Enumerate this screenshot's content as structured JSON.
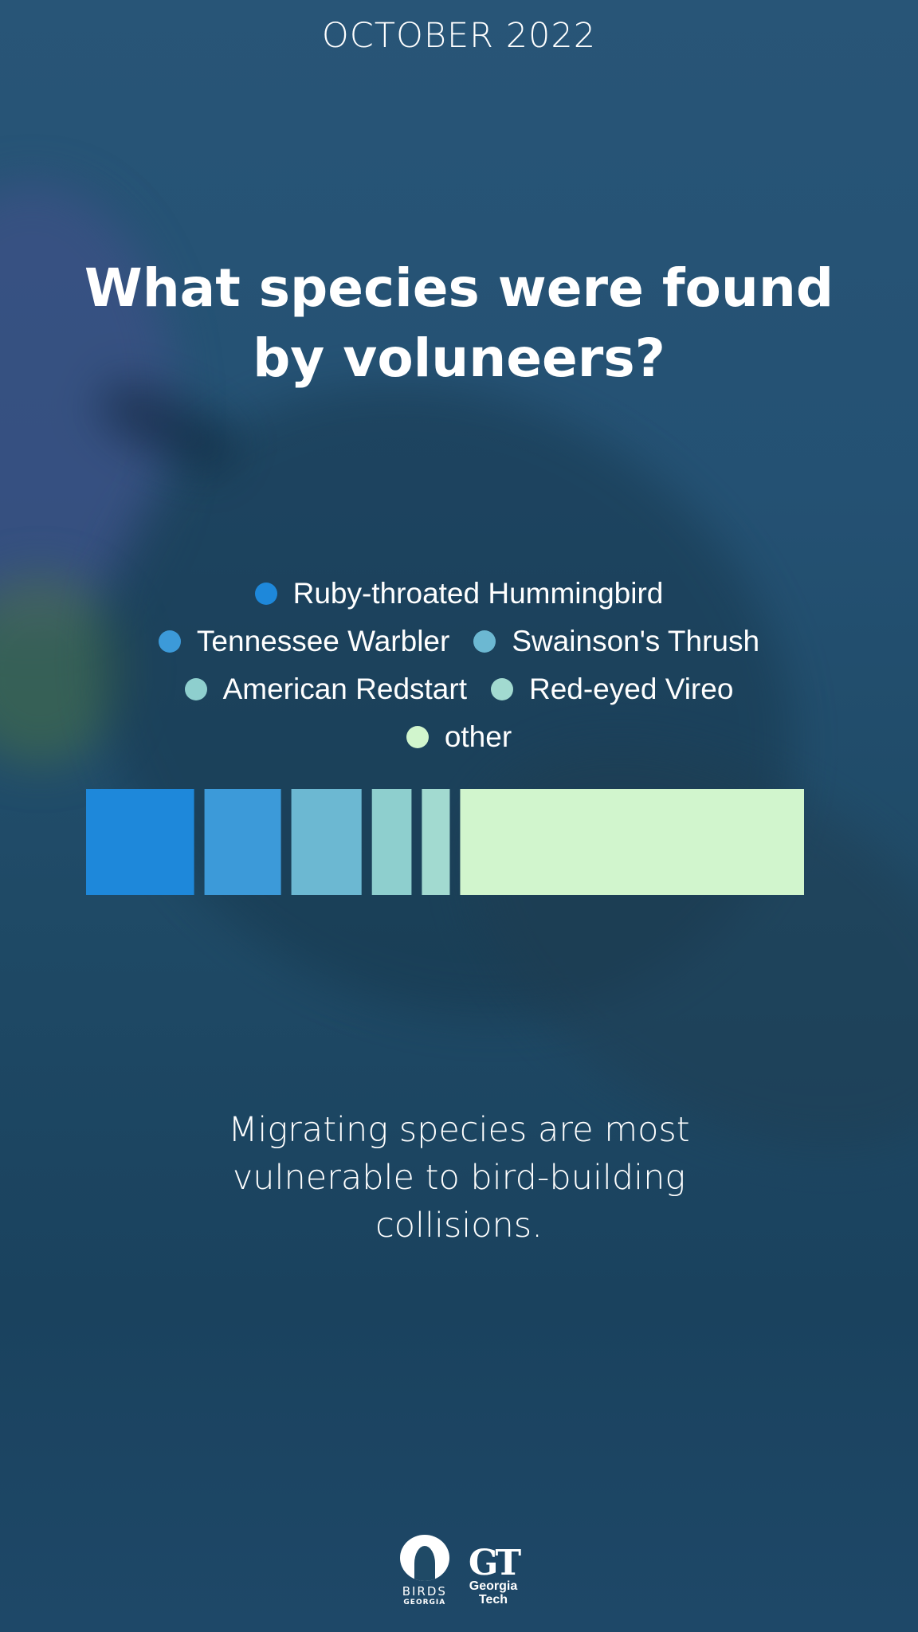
{
  "header": {
    "month": "OCTOBER 2022"
  },
  "title": {
    "line1": "What species were found",
    "line2": "by voluneers?"
  },
  "chart_data": {
    "type": "bar",
    "orientation": "horizontal-stacked",
    "categories": [
      "Ruby-throated Hummingbird",
      "Tennessee Warbler",
      "Swainson's Thrush",
      "American Redstart",
      "Red-eyed Vireo",
      "other"
    ],
    "values": [
      12,
      8.5,
      7.8,
      4.4,
      3.1,
      38.2
    ],
    "units": "percent of total",
    "colors": [
      "#1e88da",
      "#3c9ad9",
      "#6cb8d2",
      "#8ecfce",
      "#a2dad0",
      "#d1f5cd"
    ],
    "legend": {
      "position": "top",
      "rows": [
        [
          0
        ],
        [
          1,
          2
        ],
        [
          3,
          4
        ],
        [
          5
        ]
      ]
    },
    "title": "What species were found by voluneers?"
  },
  "caption": {
    "line1": "Migrating species are most",
    "line2": "vulnerable to bird-building",
    "line3": "collisions."
  },
  "logos": {
    "birds": {
      "name": "BIRDS",
      "sub": "GEORGIA"
    },
    "gt": {
      "mark": "GT",
      "line1": "Georgia",
      "line2": "Tech"
    }
  }
}
